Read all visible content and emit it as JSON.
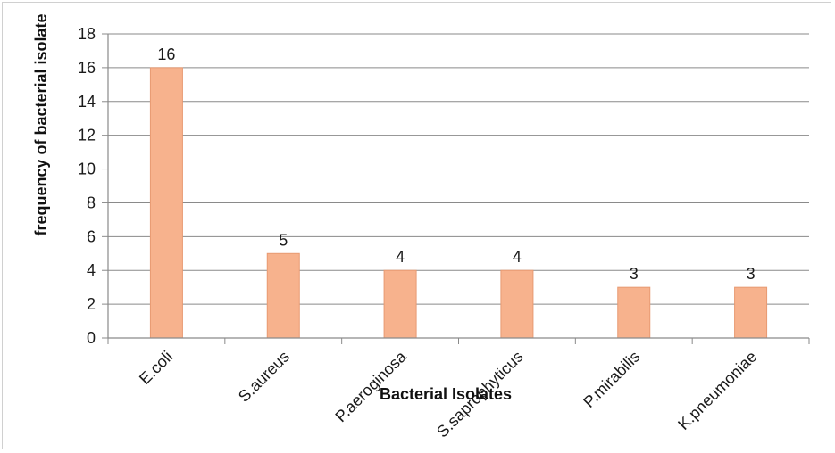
{
  "chart_data": {
    "type": "bar",
    "categories": [
      "E.coli",
      "S.aureus",
      "P.aeroginosa",
      "S.saprophyticus",
      "P.mirabilis",
      "K.pneumoniae"
    ],
    "values": [
      16,
      5,
      4,
      4,
      3,
      3
    ],
    "xlabel": "Bacterial Isolates",
    "ylabel": "frequency of bacterial isolate",
    "ylim": [
      0,
      18
    ],
    "yticks": [
      0,
      2,
      4,
      6,
      8,
      10,
      12,
      14,
      16,
      18
    ],
    "grid": true,
    "legend": "none",
    "data_labels": true,
    "colors": {
      "bar": "#f7b28d",
      "bar_border": "#e89a72",
      "grid": "#8a8a8a",
      "axis": "#8a8a8a"
    }
  }
}
